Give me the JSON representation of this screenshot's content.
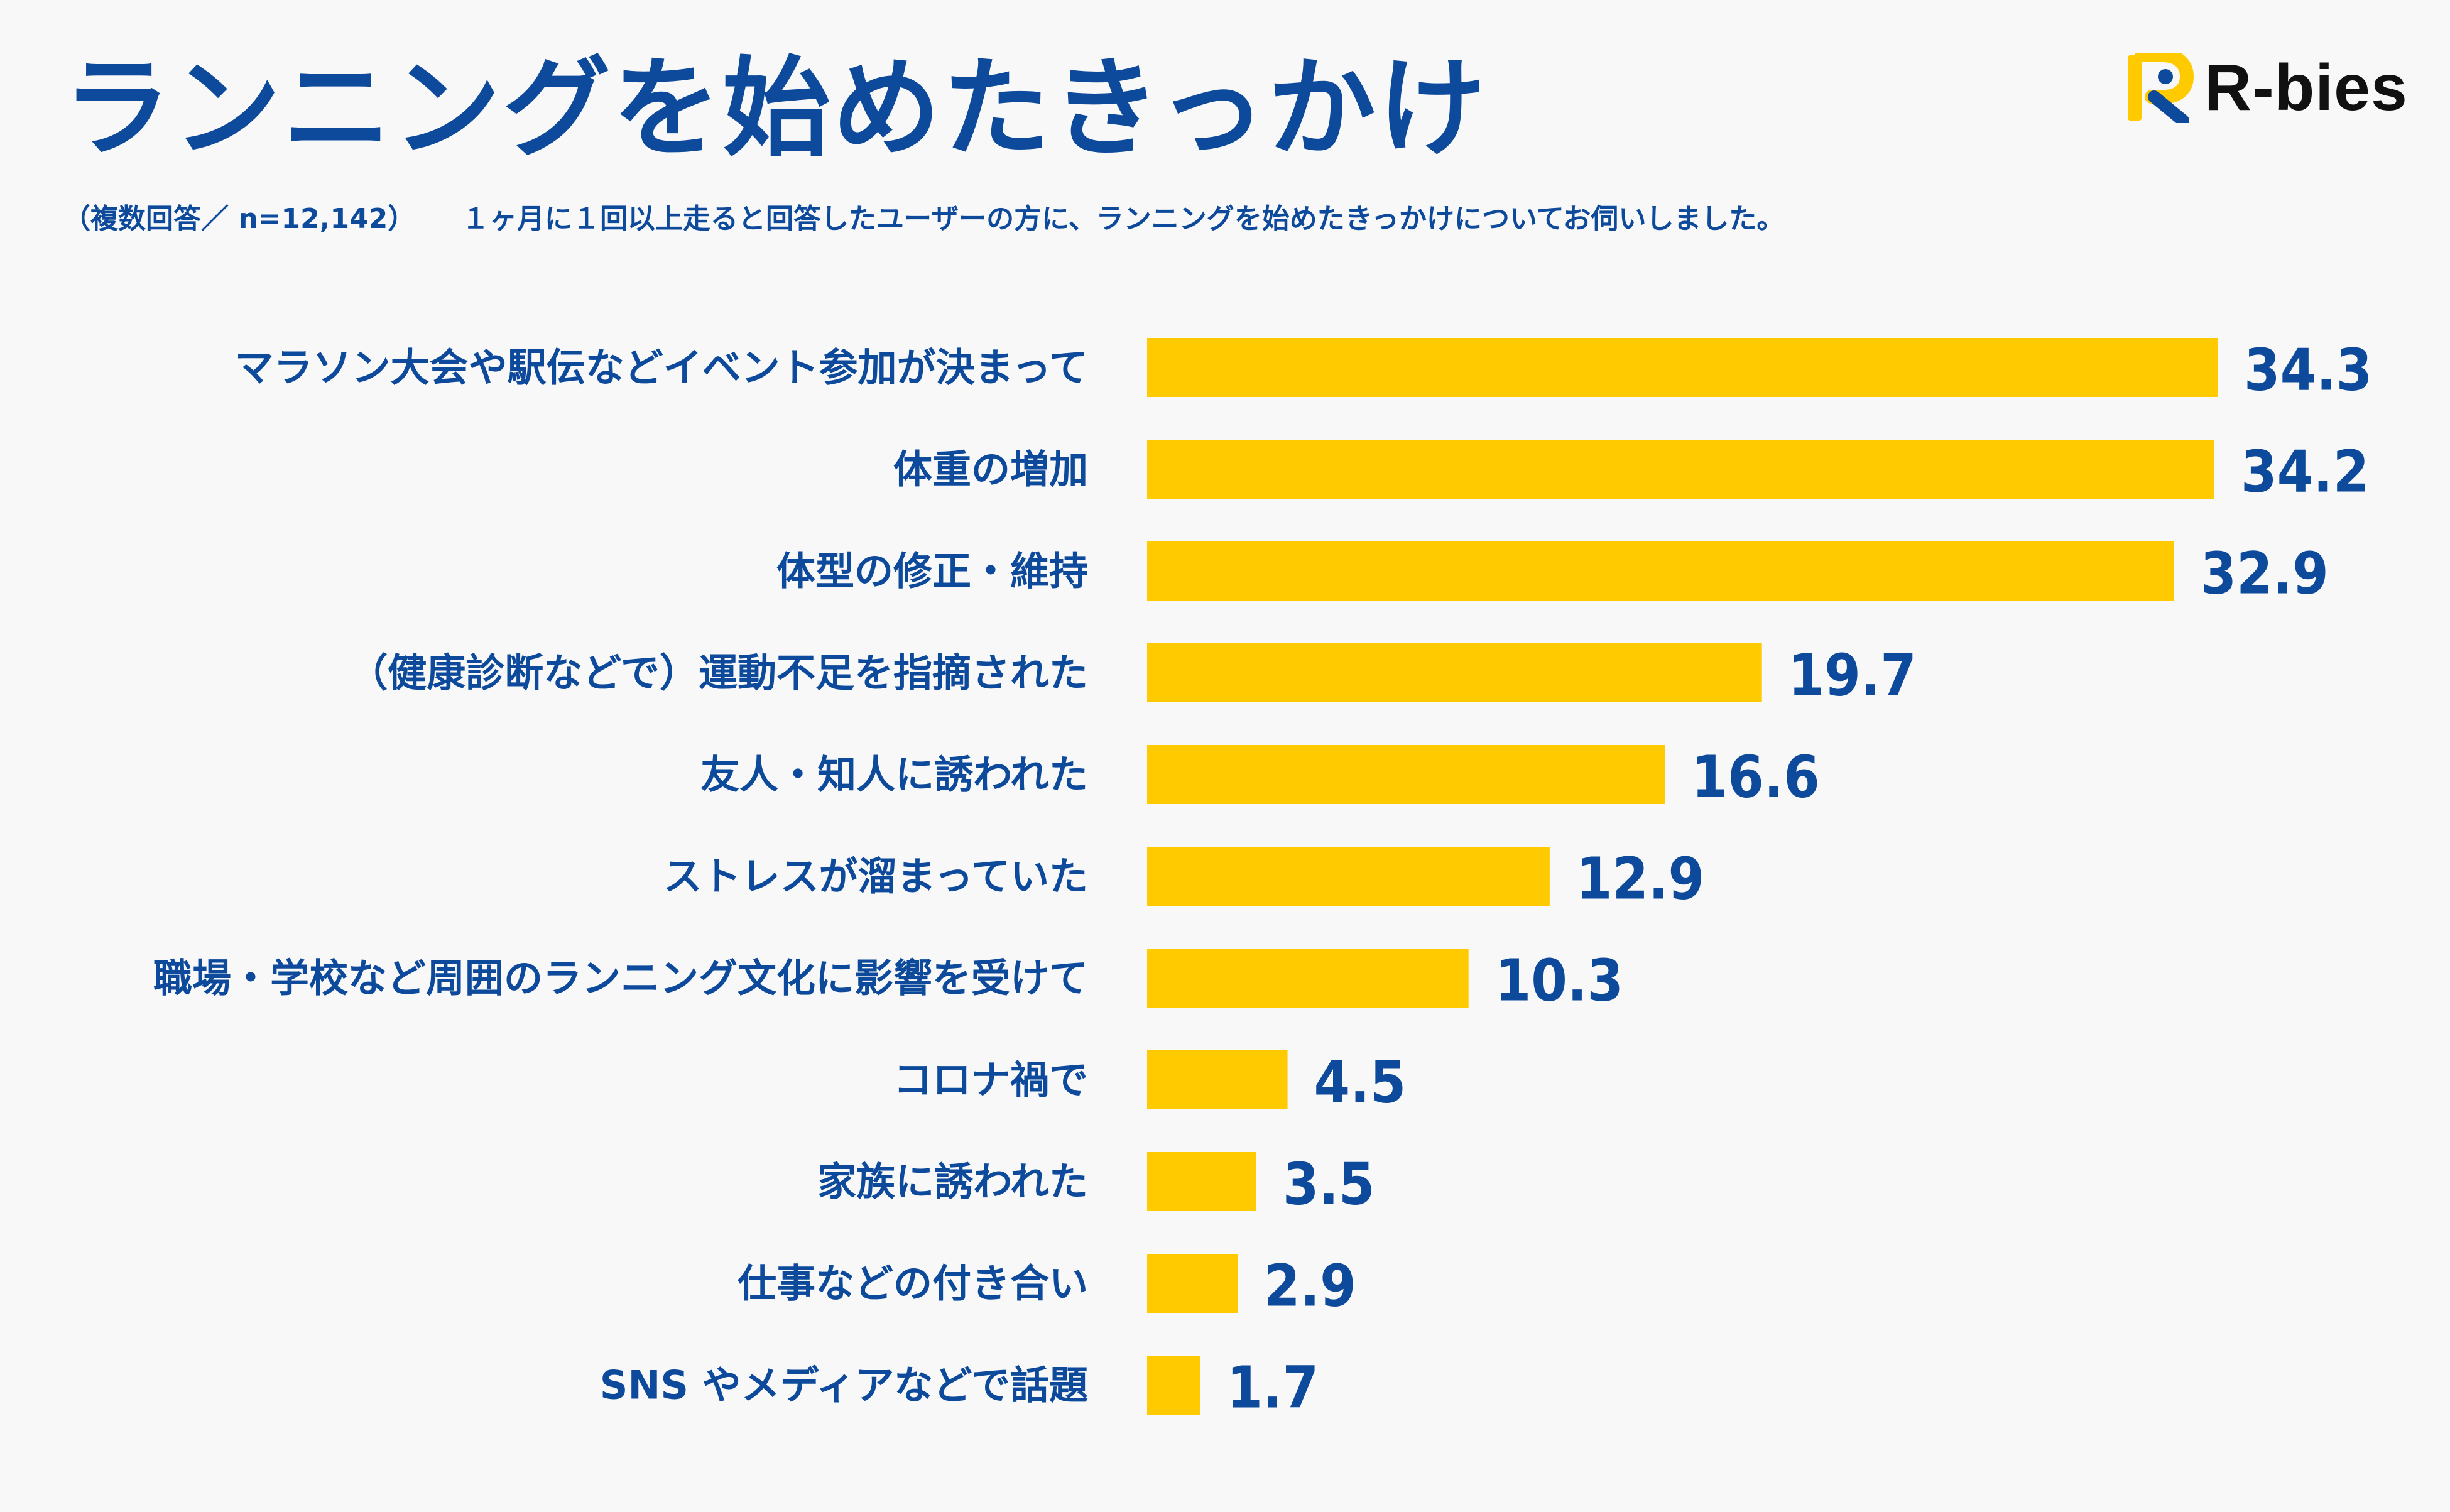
{
  "title": "ランニングを始めたきっかけ",
  "subtitle": {
    "sample": "（複数回答／ n=12,142）",
    "description": "１ヶ月に１回以上走ると回答したユーザーの方に、ランニングを始めたきっかけについてお伺いしました。"
  },
  "logo": {
    "text": "R-bies",
    "mark_letters": "R",
    "mark_icon": "r-bies-logo-icon"
  },
  "colors": {
    "bar": "#ffca00",
    "text": "#0d4a9b",
    "background": "#f8f8f8",
    "logo_text": "#111111"
  },
  "chart_data": {
    "type": "bar",
    "orientation": "horizontal",
    "title": "ランニングを始めたきっかけ",
    "xlabel": "",
    "ylabel": "",
    "xlim": [
      0,
      34.3
    ],
    "grid": false,
    "categories": [
      "マラソン大会や駅伝などイベント参加が決まって",
      "体重の増加",
      "体型の修正・維持",
      "（健康診断などで）運動不足を指摘された",
      "友人・知人に誘われた",
      "ストレスが溜まっていた",
      "職場・学校など周囲のランニング文化に影響を受けて",
      "コロナ禍で",
      "家族に誘われた",
      "仕事などの付き合い",
      "SNS やメディアなどで話題"
    ],
    "values": [
      34.3,
      34.2,
      32.9,
      19.7,
      16.6,
      12.9,
      10.3,
      4.5,
      3.5,
      2.9,
      1.7
    ],
    "value_labels": [
      "34.3",
      "34.2",
      "32.9",
      "19.7",
      "16.6",
      "12.9",
      "10.3",
      "4.5",
      "3.5",
      "2.9",
      "1.7"
    ]
  }
}
